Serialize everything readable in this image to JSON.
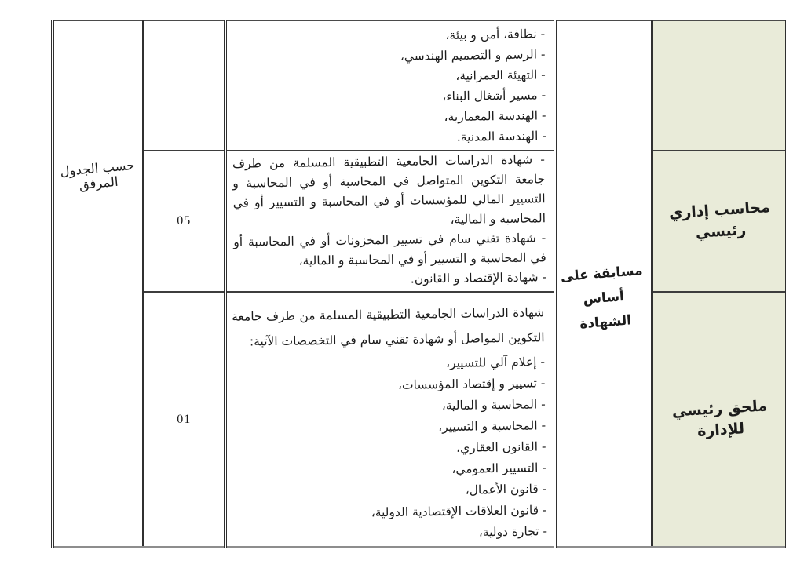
{
  "colors": {
    "job_title_bg": "#e9ebd9",
    "border_dark": "#3d3d3d",
    "border_bottom_gray": "#8d8d8d",
    "page_bg": "#ffffff",
    "text": "#1c1c1c"
  },
  "table": {
    "attached_schedule_note": "حسب الجدول المرفق",
    "competition_basis": {
      "line1": "مسابقة على أساس",
      "line2": "الشهادة"
    },
    "rows": [
      {
        "job_title": "",
        "vacancies": "",
        "requirements": {
          "items": [
            "- نظافة، أمن و بيئة،",
            "- الرسم و التصميم الهندسي،",
            "- التهيئة العمرانية،",
            "- مسير أشغال البناء،",
            "- الهندسة المعمارية،",
            "- الهندسة المدنية."
          ]
        }
      },
      {
        "job_title": "محاسب إداري رئيسي",
        "vacancies": "05",
        "requirements": {
          "items": [
            "- شهادة الدراسات الجامعية التطبيقية المسلمة من طرف جامعة التكوين المتواصل في المحاسبة أو في المحاسبة و التسيير المالي للمؤسسات أو في المحاسبة و التسيير أو في المحاسبة و المالية،",
            "- شهادة تقني سام في تسيير المخزونات أو في المحاسبة أو في المحاسبة و التسيير أو في المحاسبة و المالية،",
            "- شهادة الإقتصاد و القانون."
          ]
        }
      },
      {
        "job_title": "ملحق رئيسي للإدارة",
        "vacancies": "01",
        "requirements": {
          "intro": "شهادة الدراسات الجامعية التطبيقية المسلمة من طرف جامعة التكوين المواصل أو شهادة تقني سام في التخصصات الآتية:",
          "items": [
            "- إعلام آلي للتسيير،",
            "- تسيير و إقتصاد المؤسسات،",
            "- المحاسبة و المالية،",
            "- المحاسبة و التسيير،",
            "- القانون العقاري،",
            "- التسيير العمومي،",
            "- قانون الأعمال،",
            "- قانون العلاقات الإقتصادية الدولية،",
            "- تجارة دولية،"
          ]
        }
      }
    ]
  }
}
